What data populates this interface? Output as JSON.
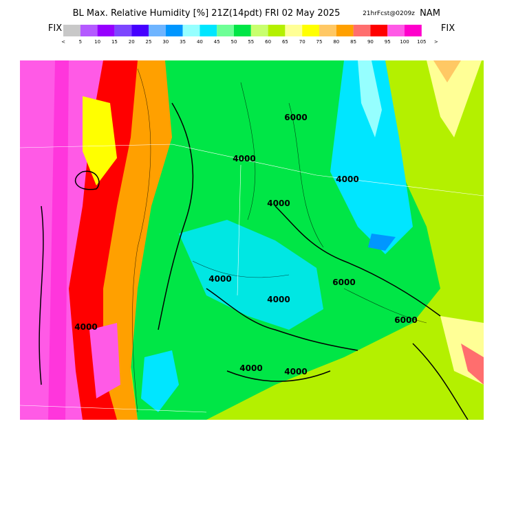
{
  "header": {
    "title": "BL Max. Relative Humidity [%] 21Z(14pdt) FRI 02 May 2025",
    "forecast": "21hrFcst@0209z",
    "model": "NAM",
    "left_tag": "FIX",
    "right_tag": "FIX"
  },
  "colorbar": {
    "labels": [
      "<",
      5,
      10,
      15,
      20,
      25,
      30,
      35,
      40,
      45,
      50,
      55,
      60,
      65,
      70,
      75,
      80,
      85,
      90,
      95,
      100,
      105,
      ">"
    ],
    "colors": [
      "#c8c8c8",
      "#b45aff",
      "#9600ff",
      "#7d46ff",
      "#4600ff",
      "#6eb4ff",
      "#0096ff",
      "#96ffff",
      "#00e6ff",
      "#6eff96",
      "#00e646",
      "#c8ff6e",
      "#b4f000",
      "#ffff96",
      "#ffff00",
      "#ffc864",
      "#ffa000",
      "#ff6e6e",
      "#ff0000",
      "#ff5ae6",
      "#ff00cc"
    ]
  },
  "map": {
    "contour_labels": [
      "4000",
      "4000",
      "6000",
      "4000",
      "4000",
      "4000",
      "6000",
      "4000",
      "4000",
      "4000",
      "6000"
    ]
  }
}
